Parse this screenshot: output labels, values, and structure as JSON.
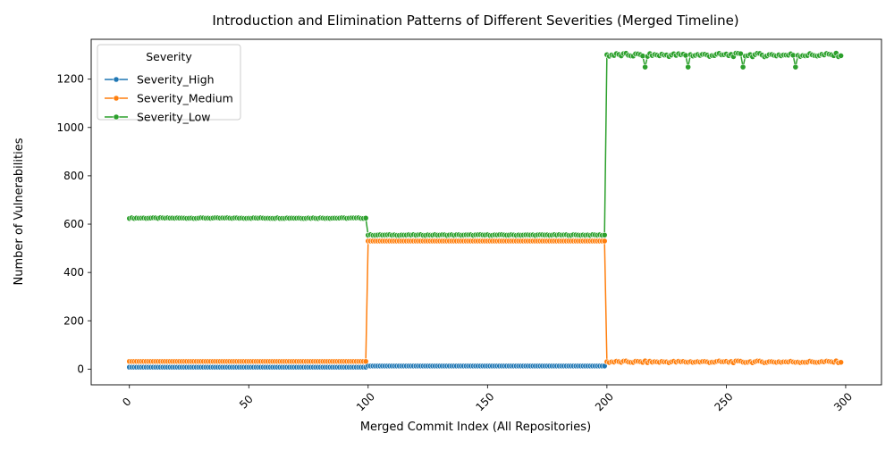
{
  "chart_data": {
    "type": "line",
    "title": "Introduction and Elimination Patterns of Different Severities (Merged Timeline)",
    "xlabel": "Merged Commit Index (All Repositories)",
    "ylabel": "Number of Vulnerabilities",
    "xlim": [
      -16,
      315
    ],
    "ylim": [
      -65,
      1365
    ],
    "xticks": [
      0,
      50,
      100,
      150,
      200,
      250,
      300
    ],
    "yticks": [
      0,
      200,
      400,
      600,
      800,
      1000,
      1200
    ],
    "grid": false,
    "legend": {
      "title": "Severity",
      "position": "top-left"
    },
    "series": [
      {
        "name": "Severity_High",
        "color": "#1f77b4",
        "segments": [
          {
            "x_start": 0,
            "x_end": 99,
            "value": 8
          },
          {
            "x_start": 100,
            "x_end": 199,
            "value": 13
          },
          {
            "x_start": 200,
            "x_end": 298,
            "value": 30,
            "variation": 8
          }
        ]
      },
      {
        "name": "Severity_Medium",
        "color": "#ff7f0e",
        "segments": [
          {
            "x_start": 0,
            "x_end": 99,
            "value": 32
          },
          {
            "x_start": 100,
            "x_end": 199,
            "value": 530
          },
          {
            "x_start": 200,
            "x_end": 298,
            "value": 30,
            "variation": 8
          }
        ]
      },
      {
        "name": "Severity_Low",
        "color": "#2ca02c",
        "segments": [
          {
            "x_start": 0,
            "x_end": 99,
            "value": 625,
            "variation": 3
          },
          {
            "x_start": 100,
            "x_end": 199,
            "value": 555,
            "variation": 3
          },
          {
            "x_start": 200,
            "x_end": 298,
            "value": 1300,
            "variation": 15,
            "dips": [
              {
                "x": 216,
                "value": 1250
              },
              {
                "x": 234,
                "value": 1250
              },
              {
                "x": 257,
                "value": 1250
              },
              {
                "x": 279,
                "value": 1250
              }
            ]
          }
        ]
      }
    ]
  }
}
